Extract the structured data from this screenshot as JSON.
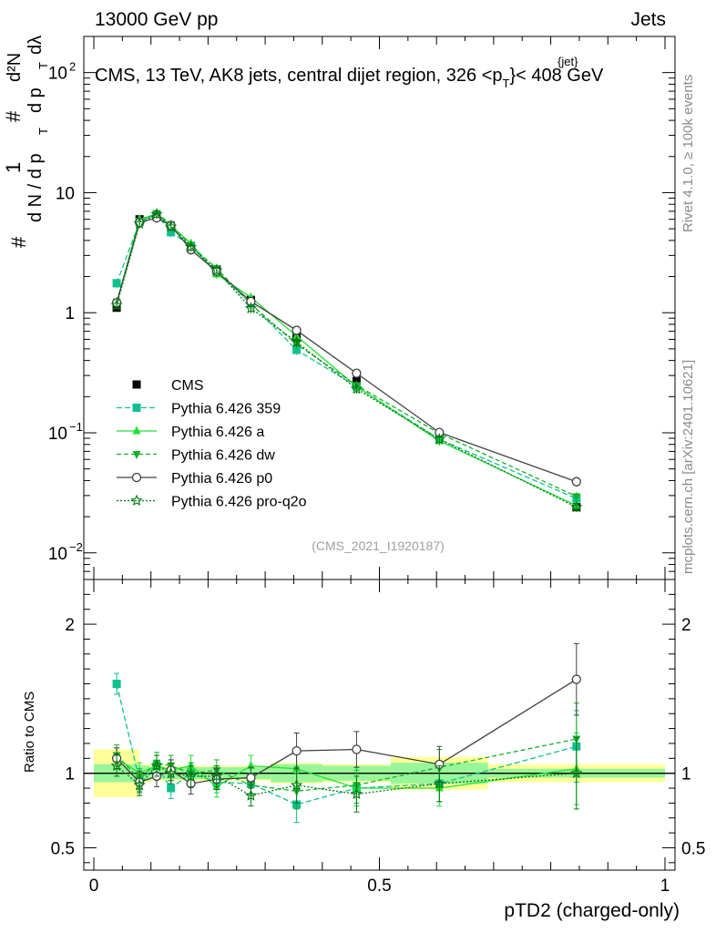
{
  "header": {
    "left": "13000 GeV pp",
    "right": "Jets"
  },
  "chart_data": {
    "type": "line",
    "title_parts": {
      "pre": "CMS, 13 TeV, AK8 jets, central dijet region, 326 <",
      "p": "p",
      "sub": "T",
      "sup": "{jet}",
      "post": "}< 408 GeV"
    },
    "ylabel_parts": {
      "hash": "#",
      "one": "1",
      "dn": "d N / d p",
      "t": "T",
      "d2n": "d²N",
      "dpt": "d p",
      "dlam": "dλ"
    },
    "xlabel": "pTD2 (charged-only)",
    "ratio_ylabel": "Ratio to CMS",
    "analysis_id": "(CMS_2021_I1920187)",
    "side_label_top": "Rivet 4.1.0, ≥ 100k events",
    "side_label_bottom": "mcplots.cern.ch [arXiv:2401.10621]",
    "xlim": [
      0,
      1
    ],
    "ylim_main": [
      0.006,
      200
    ],
    "ylim_ratio": [
      0.35,
      2.3
    ],
    "x_ticks": [
      "0",
      "0.5",
      "1"
    ],
    "y_ticks_main": [
      {
        "v": 100,
        "base": "10",
        "exp": "2"
      },
      {
        "v": 10,
        "base": "10",
        "exp": ""
      },
      {
        "v": 1,
        "base": "1",
        "exp": ""
      },
      {
        "v": 0.1,
        "base": "10",
        "exp": "−1"
      },
      {
        "v": 0.01,
        "base": "10",
        "exp": "−2"
      }
    ],
    "y_ticks_ratio": [
      {
        "v": 0.5,
        "label": "0.5"
      },
      {
        "v": 1,
        "label": "1"
      },
      {
        "v": 2,
        "label": "2"
      }
    ],
    "bin_edges": [
      0.0,
      0.08,
      0.1,
      0.12,
      0.15,
      0.19,
      0.24,
      0.31,
      0.4,
      0.52,
      0.69,
      1.0
    ],
    "x": [
      0.04,
      0.08,
      0.11,
      0.135,
      0.17,
      0.215,
      0.275,
      0.355,
      0.46,
      0.605,
      0.845
    ],
    "band_stat": [
      0.06,
      0.05,
      0.04,
      0.04,
      0.04,
      0.04,
      0.04,
      0.06,
      0.05,
      0.07,
      0.03
    ],
    "band_total": [
      0.16,
      0.06,
      0.05,
      0.05,
      0.05,
      0.05,
      0.05,
      0.07,
      0.06,
      0.11,
      0.06
    ],
    "series": [
      {
        "name": "CMS",
        "color": "#000000",
        "marker": "square",
        "dash": "none",
        "values": [
          1.1,
          6.0,
          6.3,
          5.2,
          3.6,
          2.3,
          1.28,
          0.62,
          0.27,
          0.095,
          0.024
        ]
      },
      {
        "name": "Pythia 6.426 359",
        "color": "#10c090",
        "marker": "square",
        "dash": "6,3",
        "ratio": [
          1.6,
          0.95,
          1.05,
          0.9,
          1.0,
          0.94,
          0.93,
          0.79,
          0.9,
          0.93,
          1.18
        ]
      },
      {
        "name": "Pythia 6.426 a",
        "color": "#22e030",
        "marker": "triangle",
        "dash": "none",
        "ratio": [
          1.1,
          1.0,
          1.05,
          1.02,
          1.05,
          0.91,
          1.05,
          1.03,
          0.9,
          0.9,
          1.03
        ]
      },
      {
        "name": "Pythia 6.426 dw",
        "color": "#16b028",
        "marker": "triangle-down",
        "dash": "5,3",
        "ratio": [
          1.12,
          0.96,
          1.07,
          1.05,
          1.0,
          1.02,
          0.92,
          0.88,
          0.92,
          1.04,
          1.23
        ]
      },
      {
        "name": "Pythia 6.426 p0",
        "color": "#404040",
        "marker": "circle-open",
        "dash": "none",
        "ratio": [
          1.1,
          0.94,
          0.98,
          1.02,
          0.93,
          0.96,
          0.97,
          1.15,
          1.16,
          1.06,
          1.63
        ]
      },
      {
        "name": "Pythia 6.426 pro-q2o",
        "color": "#007a10",
        "marker": "star",
        "dash": "2,2",
        "ratio": [
          1.05,
          0.92,
          1.05,
          1.0,
          0.98,
          0.98,
          0.85,
          0.92,
          0.86,
          0.93,
          1.0
        ]
      }
    ]
  }
}
